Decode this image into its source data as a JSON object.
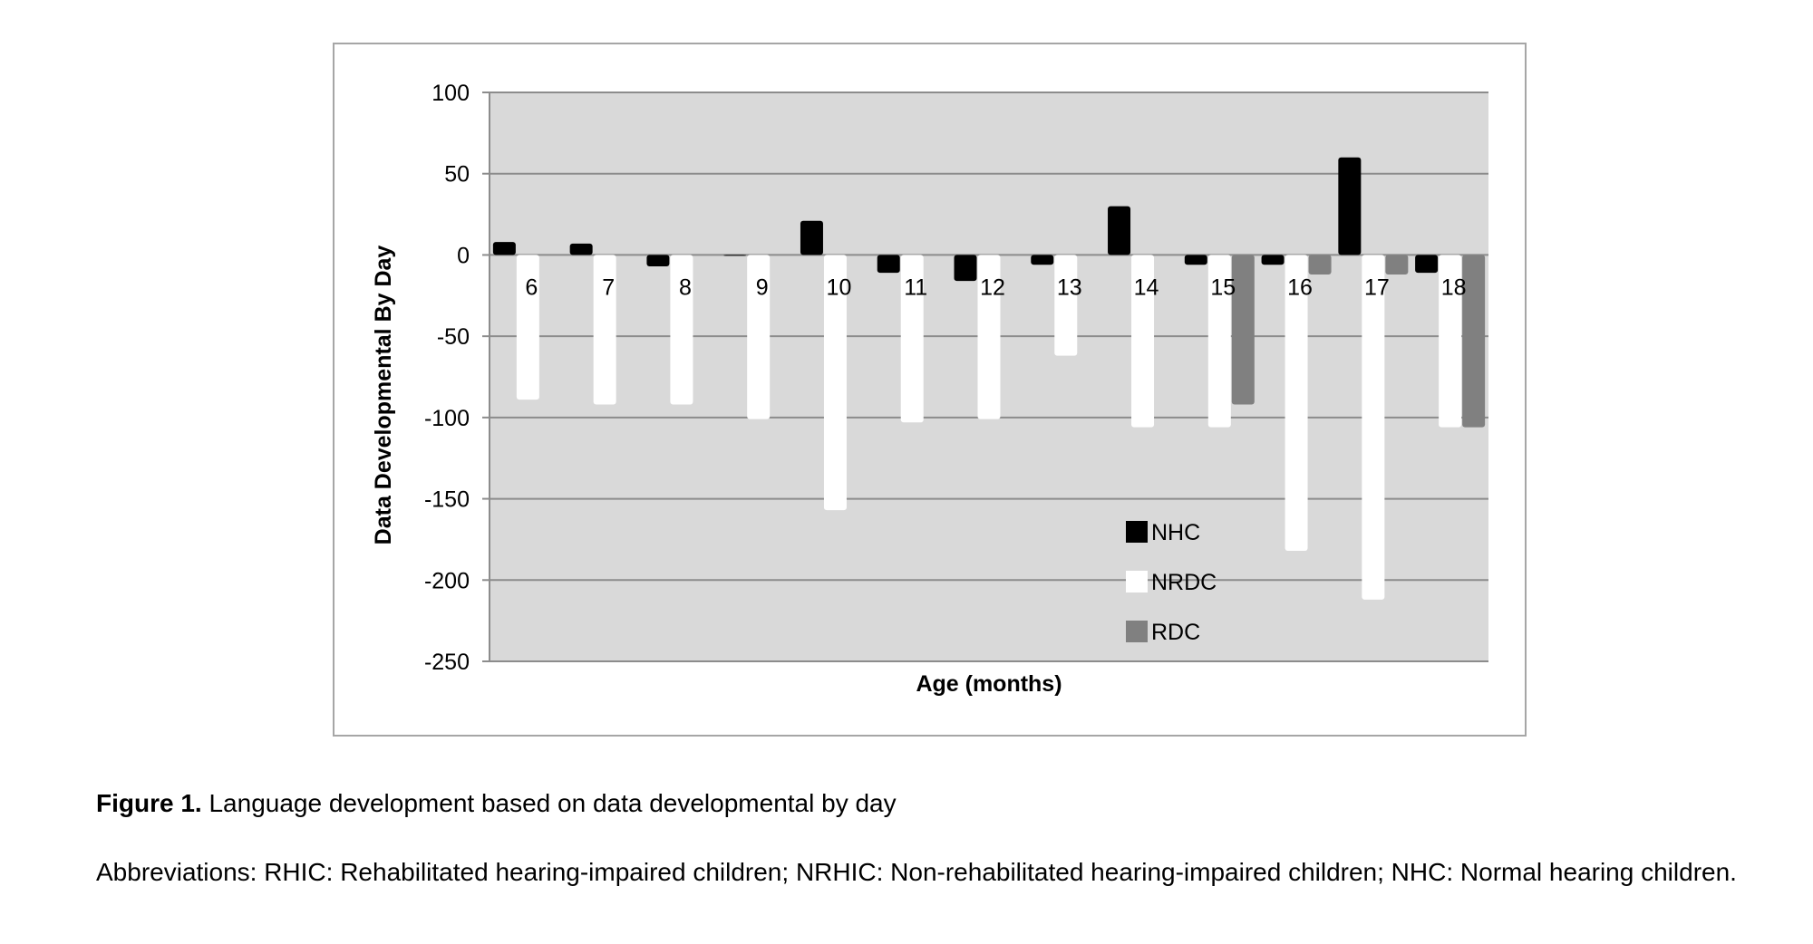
{
  "figure": {
    "caption_lead": "Figure 1.",
    "caption_text": " Language development based on data developmental by day",
    "abbreviations": "Abbreviations: RHIC: Rehabilitated hearing-impaired children; NRHIC: Non-rehabilitated hearing-impaired children; NHC: Normal hearing children."
  },
  "colors": {
    "plot_background": "#d9d9d9",
    "gridline": "#8c8c8c",
    "NHC": "#000000",
    "NRDC": "#ffffff",
    "RDC": "#808080"
  },
  "chart_data": {
    "type": "bar",
    "title": "",
    "xlabel": "Age (months)",
    "ylabel": "Data Developmental By Day",
    "ylim": [
      -250,
      100
    ],
    "yticks": [
      100,
      50,
      0,
      -50,
      -100,
      -150,
      -200,
      -250
    ],
    "grid": true,
    "legend_position": "bottom-right-inside",
    "categories": [
      "6",
      "7",
      "8",
      "9",
      "10",
      "11",
      "12",
      "13",
      "14",
      "15",
      "16",
      "17",
      "18"
    ],
    "series": [
      {
        "name": "NHC",
        "color": "#000000",
        "values": [
          8,
          7,
          -7,
          0,
          21,
          -11,
          -16,
          -6,
          30,
          -6,
          -6,
          60,
          -11
        ]
      },
      {
        "name": "NRDC",
        "color": "#ffffff",
        "values": [
          -89,
          -92,
          -92,
          -101,
          -157,
          -103,
          -101,
          -62,
          -106,
          -106,
          -182,
          -212,
          -106
        ]
      },
      {
        "name": "RDC",
        "color": "#808080",
        "values": [
          null,
          null,
          null,
          null,
          null,
          null,
          null,
          null,
          null,
          -92,
          -12,
          -12,
          -106
        ]
      }
    ]
  }
}
